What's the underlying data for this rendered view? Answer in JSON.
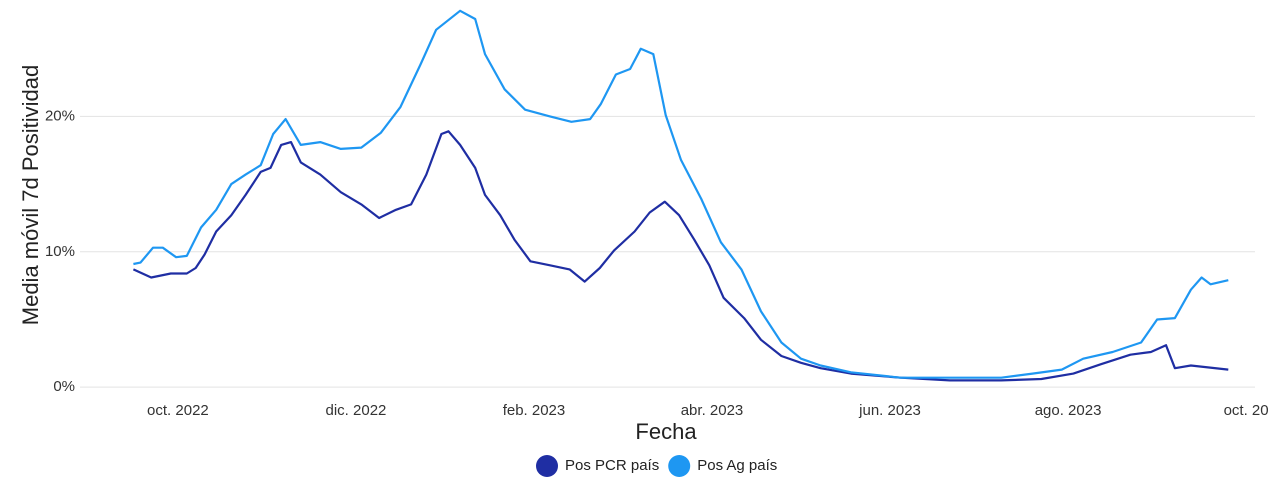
{
  "chart_data": {
    "type": "line",
    "x_label": "Fecha",
    "y_label": "Media móvil 7d Positividad",
    "xlim": [
      8.9,
      22.1
    ],
    "xticks": [
      {
        "value": 10,
        "label": "oct. 2022"
      },
      {
        "value": 12,
        "label": "dic. 2022"
      },
      {
        "value": 14,
        "label": "feb. 2023"
      },
      {
        "value": 16,
        "label": "abr. 2023"
      },
      {
        "value": 18,
        "label": "jun. 2023"
      },
      {
        "value": 20,
        "label": "ago. 2023"
      },
      {
        "value": 22,
        "label": "oct. 20"
      }
    ],
    "ylim": [
      -0.8,
      28.6
    ],
    "yticks": [
      {
        "value": 0,
        "label": "0%"
      },
      {
        "value": 10,
        "label": "10%"
      },
      {
        "value": 20,
        "label": "20%"
      }
    ],
    "grid": true,
    "series": [
      {
        "name": "Pos PCR país",
        "color": "#1f2ea3",
        "x": [
          9.5,
          9.7,
          9.92,
          10.1,
          10.2,
          10.3,
          10.43,
          10.6,
          10.76,
          10.93,
          11.04,
          11.16,
          11.27,
          11.38,
          11.6,
          11.83,
          12.06,
          12.26,
          12.45,
          12.62,
          12.79,
          12.96,
          13.04,
          13.17,
          13.34,
          13.45,
          13.62,
          13.78,
          13.96,
          14.18,
          14.4,
          14.57,
          14.74,
          14.9,
          15.13,
          15.3,
          15.47,
          15.63,
          15.8,
          15.97,
          16.13,
          16.36,
          16.55,
          16.78,
          17.0,
          17.22,
          17.56,
          18.12,
          18.67,
          19.25,
          19.7,
          20.06,
          20.37,
          20.7,
          20.93,
          21.1,
          21.2,
          21.38,
          21.8
        ],
        "values": [
          8.7,
          8.1,
          8.4,
          8.4,
          8.8,
          9.8,
          11.5,
          12.7,
          14.2,
          15.9,
          16.2,
          17.9,
          18.1,
          16.6,
          15.7,
          14.4,
          13.5,
          12.5,
          13.1,
          13.5,
          15.7,
          18.7,
          18.9,
          17.9,
          16.2,
          14.2,
          12.7,
          10.9,
          9.3,
          9.0,
          8.7,
          7.8,
          8.8,
          10.1,
          11.5,
          12.9,
          13.7,
          12.7,
          10.9,
          9.0,
          6.6,
          5.1,
          3.5,
          2.3,
          1.8,
          1.4,
          1.0,
          0.7,
          0.5,
          0.5,
          0.6,
          1.0,
          1.7,
          2.4,
          2.6,
          3.1,
          1.4,
          1.6,
          1.3
        ]
      },
      {
        "name": "Pos Ag país",
        "color": "#1e97f2",
        "x": [
          9.5,
          9.58,
          9.72,
          9.83,
          9.98,
          10.1,
          10.26,
          10.43,
          10.6,
          10.76,
          10.93,
          11.07,
          11.21,
          11.38,
          11.6,
          11.83,
          12.06,
          12.28,
          12.5,
          12.73,
          12.9,
          13.17,
          13.34,
          13.45,
          13.67,
          13.9,
          14.18,
          14.42,
          14.63,
          14.75,
          14.92,
          15.08,
          15.2,
          15.34,
          15.48,
          15.65,
          15.88,
          16.1,
          16.33,
          16.55,
          16.78,
          17.0,
          17.22,
          17.56,
          18.12,
          18.67,
          19.25,
          19.6,
          19.93,
          20.17,
          20.5,
          20.82,
          21.0,
          21.2,
          21.38,
          21.5,
          21.6,
          21.8
        ],
        "values": [
          9.1,
          9.2,
          10.3,
          10.3,
          9.6,
          9.7,
          11.8,
          13.1,
          15.0,
          15.7,
          16.4,
          18.7,
          19.8,
          17.9,
          18.1,
          17.6,
          17.7,
          18.8,
          20.7,
          23.9,
          26.4,
          27.8,
          27.2,
          24.6,
          22.0,
          20.5,
          20.0,
          19.6,
          19.8,
          20.9,
          23.1,
          23.5,
          25.0,
          24.6,
          20.1,
          16.8,
          13.9,
          10.7,
          8.7,
          5.6,
          3.3,
          2.1,
          1.6,
          1.1,
          0.7,
          0.7,
          0.7,
          1.0,
          1.3,
          2.1,
          2.6,
          3.3,
          5.0,
          5.1,
          7.2,
          8.1,
          7.6,
          7.9
        ]
      }
    ]
  }
}
